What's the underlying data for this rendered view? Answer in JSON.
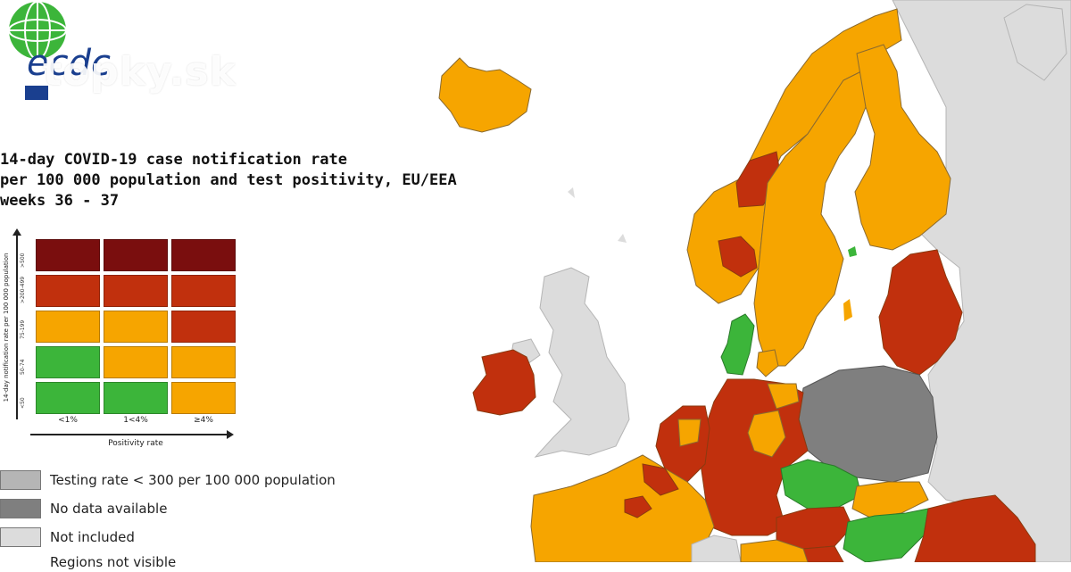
{
  "watermark": "topky.sk",
  "logo": {
    "text": "ecdc"
  },
  "title": {
    "line1": "14-day COVID-19 case notification rate",
    "line2": "per 100 000 population and test positivity, EU/EEA",
    "line3": "weeks 36 - 37"
  },
  "colors": {
    "dark_red": "#7a0e0e",
    "red": "#c1300d",
    "orange": "#f6a500",
    "green": "#3cb53a",
    "testing_grey": "#b5b5b5",
    "nodata_grey": "#7f7f7f",
    "not_included": "#dcdcdc",
    "sea": "#ffffff",
    "border": "#8a6a30"
  },
  "matrix": {
    "ylabel": "14-day notification rate per 100 000 population",
    "xlabel": "Positivity rate",
    "x_ticks": [
      "<1%",
      "1<4%",
      "≥4%"
    ],
    "y_ticks": [
      ">500",
      ">200-499",
      "75-199",
      "50-74",
      "<50"
    ],
    "rows": [
      [
        "dark_red",
        "dark_red",
        "dark_red"
      ],
      [
        "red",
        "red",
        "red"
      ],
      [
        "orange",
        "orange",
        "red"
      ],
      [
        "green",
        "orange",
        "orange"
      ],
      [
        "green",
        "green",
        "orange"
      ]
    ]
  },
  "legend": [
    {
      "label": "Testing rate < 300 per 100 000 population",
      "color": "testing_grey"
    },
    {
      "label": "No data available",
      "color": "nodata_grey"
    },
    {
      "label": "Not included",
      "color": "not_included"
    },
    {
      "label": "Regions not visible",
      "color": "sea"
    }
  ],
  "map_regions": [
    {
      "name": "Iceland",
      "status": "orange"
    },
    {
      "name": "Norway",
      "status": "orange"
    },
    {
      "name": "Sweden",
      "status": "orange"
    },
    {
      "name": "Finland",
      "status": "orange"
    },
    {
      "name": "Estonia/Latvia/Lithuania",
      "status": "red"
    },
    {
      "name": "Denmark",
      "status": "green"
    },
    {
      "name": "Ireland",
      "status": "red"
    },
    {
      "name": "United Kingdom",
      "status": "not_included"
    },
    {
      "name": "Poland",
      "status": "nodata_grey"
    },
    {
      "name": "Netherlands/Belgium",
      "status": "red"
    },
    {
      "name": "Germany",
      "status": "red"
    },
    {
      "name": "France",
      "status": "orange"
    },
    {
      "name": "Czechia",
      "status": "green"
    },
    {
      "name": "Slovakia",
      "status": "orange"
    },
    {
      "name": "Austria",
      "status": "red"
    },
    {
      "name": "Hungary",
      "status": "green"
    },
    {
      "name": "Romania",
      "status": "red"
    },
    {
      "name": "Switzerland",
      "status": "not_included"
    },
    {
      "name": "Russia/Belarus/Ukraine",
      "status": "not_included"
    }
  ]
}
